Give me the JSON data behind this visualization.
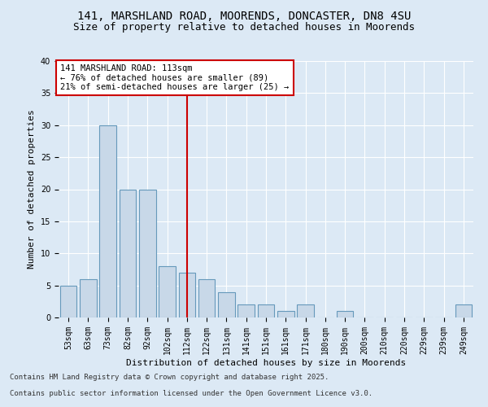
{
  "title_line1": "141, MARSHLAND ROAD, MOORENDS, DONCASTER, DN8 4SU",
  "title_line2": "Size of property relative to detached houses in Moorends",
  "xlabel": "Distribution of detached houses by size in Moorends",
  "ylabel": "Number of detached properties",
  "categories": [
    "53sqm",
    "63sqm",
    "73sqm",
    "82sqm",
    "92sqm",
    "102sqm",
    "112sqm",
    "122sqm",
    "131sqm",
    "141sqm",
    "151sqm",
    "161sqm",
    "171sqm",
    "180sqm",
    "190sqm",
    "200sqm",
    "210sqm",
    "220sqm",
    "229sqm",
    "239sqm",
    "249sqm"
  ],
  "values": [
    5,
    6,
    30,
    20,
    20,
    8,
    7,
    6,
    4,
    2,
    2,
    1,
    2,
    0,
    1,
    0,
    0,
    0,
    0,
    0,
    2
  ],
  "bar_color": "#c8d8e8",
  "bar_edge_color": "#6699bb",
  "highlight_index": 6,
  "highlight_color": "#cc0000",
  "annotation_title": "141 MARSHLAND ROAD: 113sqm",
  "annotation_line1": "← 76% of detached houses are smaller (89)",
  "annotation_line2": "21% of semi-detached houses are larger (25) →",
  "annotation_box_color": "#ffffff",
  "annotation_box_edge_color": "#cc0000",
  "ylim": [
    0,
    40
  ],
  "yticks": [
    0,
    5,
    10,
    15,
    20,
    25,
    30,
    35,
    40
  ],
  "background_color": "#dce9f5",
  "plot_bg_color": "#dce9f5",
  "footer_line1": "Contains HM Land Registry data © Crown copyright and database right 2025.",
  "footer_line2": "Contains public sector information licensed under the Open Government Licence v3.0.",
  "title_fontsize": 10,
  "subtitle_fontsize": 9,
  "axis_label_fontsize": 8,
  "tick_fontsize": 7,
  "annotation_fontsize": 7.5,
  "footer_fontsize": 6.5
}
